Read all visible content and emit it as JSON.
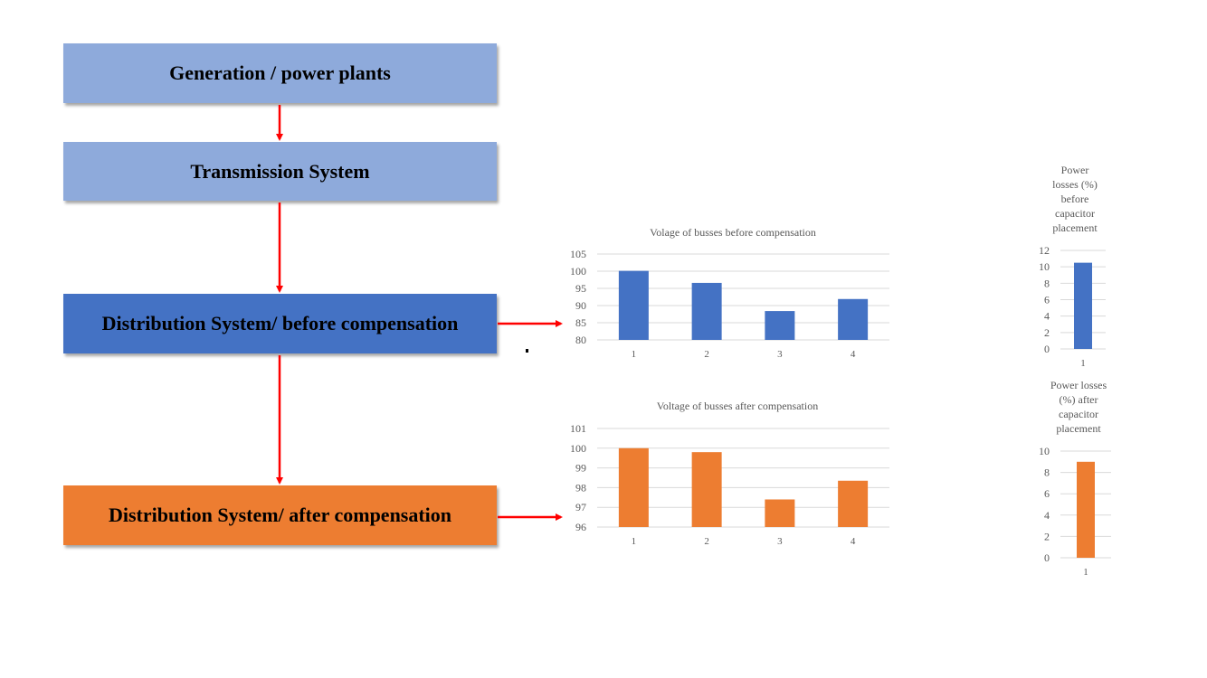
{
  "diagram": {
    "boxes": {
      "generation": "Generation / power plants",
      "transmission": "Transmission System",
      "before": "Distribution System/ before compensation",
      "after": "Distribution System/ after compensation"
    },
    "colors": {
      "light_blue": "#8eaadb",
      "blue": "#4472c4",
      "orange": "#ed7d31",
      "arrow": "#ff0000"
    }
  },
  "chart_data": [
    {
      "type": "bar",
      "title": "Volage of busses before compensation",
      "categories": [
        "1",
        "2",
        "3",
        "4"
      ],
      "values": [
        100.1,
        96.6,
        88.4,
        91.9
      ],
      "ylim": [
        80,
        105
      ],
      "yticks": [
        80,
        85,
        90,
        95,
        100,
        105
      ],
      "color": "#4472c4",
      "grid": true
    },
    {
      "type": "bar",
      "title": "Voltage of busses after compensation",
      "categories": [
        "1",
        "2",
        "3",
        "4"
      ],
      "values": [
        100.0,
        99.8,
        97.4,
        98.35
      ],
      "ylim": [
        96,
        101
      ],
      "yticks": [
        96,
        97,
        98,
        99,
        100,
        101
      ],
      "color": "#ed7d31",
      "grid": true
    },
    {
      "type": "bar",
      "title": "Power losses (%) before capacitor placement",
      "title_lines": [
        "Power",
        "losses (%)",
        "before",
        "capacitor",
        "placement"
      ],
      "categories": [
        "1"
      ],
      "values": [
        10.5
      ],
      "ylim": [
        0,
        12
      ],
      "yticks": [
        0,
        2,
        4,
        6,
        8,
        10,
        12
      ],
      "color": "#4472c4",
      "grid": true
    },
    {
      "type": "bar",
      "title": "Power losses (%) after capacitor placement",
      "title_lines": [
        "Power losses",
        "(%) after",
        "capacitor",
        "placement"
      ],
      "categories": [
        "1"
      ],
      "values": [
        9.0
      ],
      "ylim": [
        0,
        10
      ],
      "yticks": [
        0,
        2,
        4,
        6,
        8,
        10
      ],
      "color": "#ed7d31",
      "grid": true
    }
  ]
}
